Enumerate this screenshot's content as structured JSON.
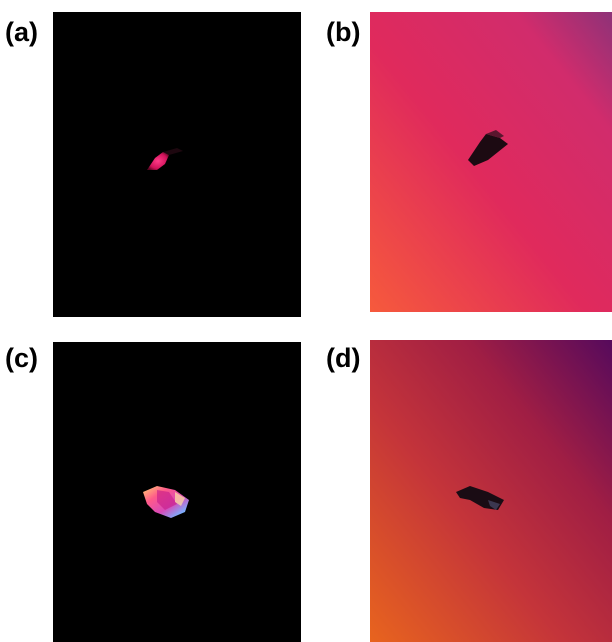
{
  "panels": [
    {
      "label": "(a)",
      "illumination": "crossed-polarizers-dark-field",
      "background_color": "#000000",
      "crystal_colors": [
        "#ff2a78",
        "#c0104a"
      ]
    },
    {
      "label": "(b)",
      "illumination": "bright-field-with-retardation-plate",
      "background_gradient": [
        "#f25540",
        "#e0295e",
        "#9c2f78"
      ],
      "crystal_color": "#1a0a10"
    },
    {
      "label": "(c)",
      "illumination": "crossed-polarizers-dark-field",
      "background_color": "#000000",
      "crystal_colors": [
        "#ff5a8a",
        "#d94ab8",
        "#ffd070",
        "#7ab0ff"
      ]
    },
    {
      "label": "(d)",
      "illumination": "bright-field-with-retardation-plate",
      "background_gradient": [
        "#e86020",
        "#b8283a",
        "#5c0a5a"
      ],
      "crystal_color": "#1a0c14"
    }
  ]
}
